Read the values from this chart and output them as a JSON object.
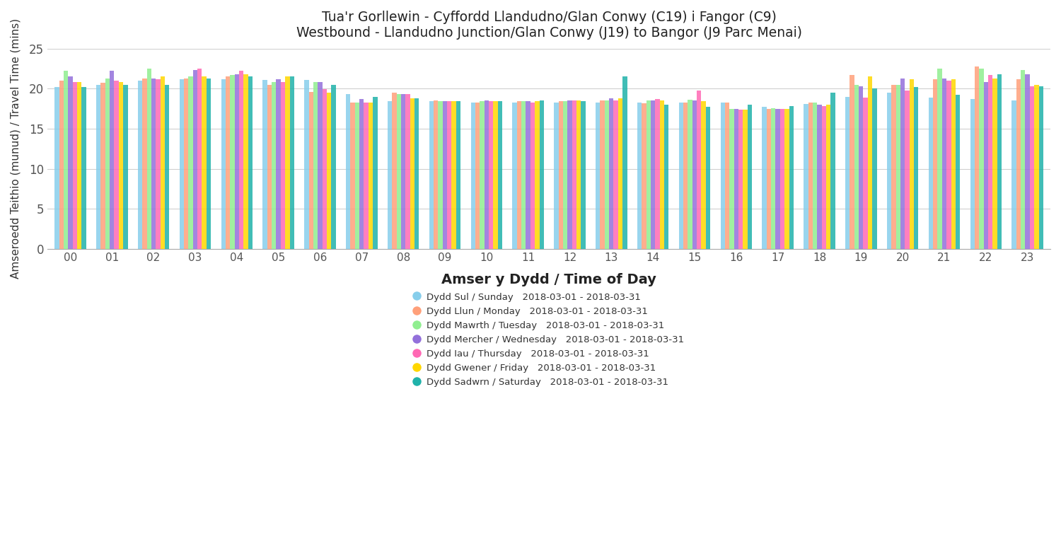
{
  "title_line1": "Tua'r Gorllewin - Cyffordd Llandudno/Glan Conwy (C19) i Fangor (C9)",
  "title_line2": "Westbound - Llandudno Junction/Glan Conwy (J19) to Bangor (J9 Parc Menai)",
  "xlabel": "Amser y Dydd / Time of Day",
  "ylabel": "Amseroedd Teithio (munud) / Travel Time (mins)",
  "ylim": [
    0,
    25
  ],
  "yticks": [
    0,
    5,
    10,
    15,
    20,
    25
  ],
  "hours": [
    "00",
    "01",
    "02",
    "03",
    "04",
    "05",
    "06",
    "07",
    "08",
    "09",
    "10",
    "11",
    "12",
    "13",
    "14",
    "15",
    "16",
    "17",
    "18",
    "19",
    "20",
    "21",
    "22",
    "23"
  ],
  "colors": [
    "#87CEEB",
    "#FFA07A",
    "#90EE90",
    "#9370DB",
    "#FF69B4",
    "#FFD700",
    "#20B2AA"
  ],
  "legend_labels": [
    "Dydd Sul / Sunday",
    "Dydd Llun / Monday",
    "Dydd Mawrth / Tuesday",
    "Dydd Mercher / Wednesday",
    "Dydd Iau / Thursday",
    "Dydd Gwener / Friday",
    "Dydd Sadwrn / Saturday"
  ],
  "legend_dates": [
    "2018-03-01 - 2018-03-31",
    "2018-03-01 - 2018-03-31",
    "2018-03-01 - 2018-03-31",
    "2018-03-01 - 2018-03-31",
    "2018-03-01 - 2018-03-31",
    "2018-03-01 - 2018-03-31",
    "2018-03-01 - 2018-03-31"
  ],
  "data": {
    "Sunday": [
      20.2,
      20.5,
      21.0,
      21.2,
      21.2,
      21.1,
      21.1,
      19.3,
      18.4,
      18.4,
      18.3,
      18.3,
      18.3,
      18.3,
      18.3,
      18.3,
      18.3,
      17.7,
      18.1,
      19.0,
      19.5,
      18.9,
      18.7,
      18.5
    ],
    "Monday": [
      21.0,
      20.7,
      21.3,
      21.3,
      21.5,
      20.5,
      19.6,
      18.3,
      19.5,
      18.5,
      18.3,
      18.4,
      18.4,
      18.5,
      18.2,
      18.3,
      18.3,
      17.5,
      18.3,
      21.7,
      20.5,
      21.2,
      22.8,
      21.2
    ],
    "Tuesday": [
      22.2,
      21.3,
      22.5,
      21.5,
      21.7,
      20.8,
      20.8,
      18.3,
      19.3,
      18.4,
      18.4,
      18.4,
      18.4,
      18.5,
      18.5,
      18.6,
      17.5,
      17.6,
      18.3,
      20.5,
      20.5,
      22.5,
      22.5,
      22.3
    ],
    "Wednesday": [
      21.5,
      22.2,
      21.3,
      22.3,
      21.8,
      21.2,
      20.8,
      18.7,
      19.3,
      18.4,
      18.5,
      18.4,
      18.5,
      18.8,
      18.5,
      18.5,
      17.5,
      17.5,
      18.0,
      20.3,
      21.3,
      21.3,
      20.8,
      21.8
    ],
    "Thursday": [
      20.8,
      21.0,
      21.2,
      22.5,
      22.2,
      20.8,
      19.9,
      18.3,
      19.3,
      18.4,
      18.4,
      18.3,
      18.5,
      18.5,
      18.7,
      19.8,
      17.4,
      17.5,
      17.8,
      18.9,
      19.8,
      21.0,
      21.7,
      20.3
    ],
    "Friday": [
      20.8,
      20.8,
      21.5,
      21.5,
      21.8,
      21.5,
      19.5,
      18.3,
      18.8,
      18.4,
      18.4,
      18.4,
      18.5,
      18.8,
      18.5,
      18.4,
      17.4,
      17.5,
      18.0,
      21.5,
      21.2,
      21.2,
      21.3,
      20.5
    ],
    "Saturday": [
      20.2,
      20.5,
      20.5,
      21.3,
      21.5,
      21.5,
      20.5,
      19.0,
      18.8,
      18.4,
      18.4,
      18.5,
      18.4,
      21.5,
      18.0,
      17.7,
      18.0,
      17.8,
      19.5,
      20.0,
      20.2,
      19.2,
      21.8,
      20.3
    ]
  },
  "background_color": "#ffffff",
  "grid_color": "#d0d0d0"
}
